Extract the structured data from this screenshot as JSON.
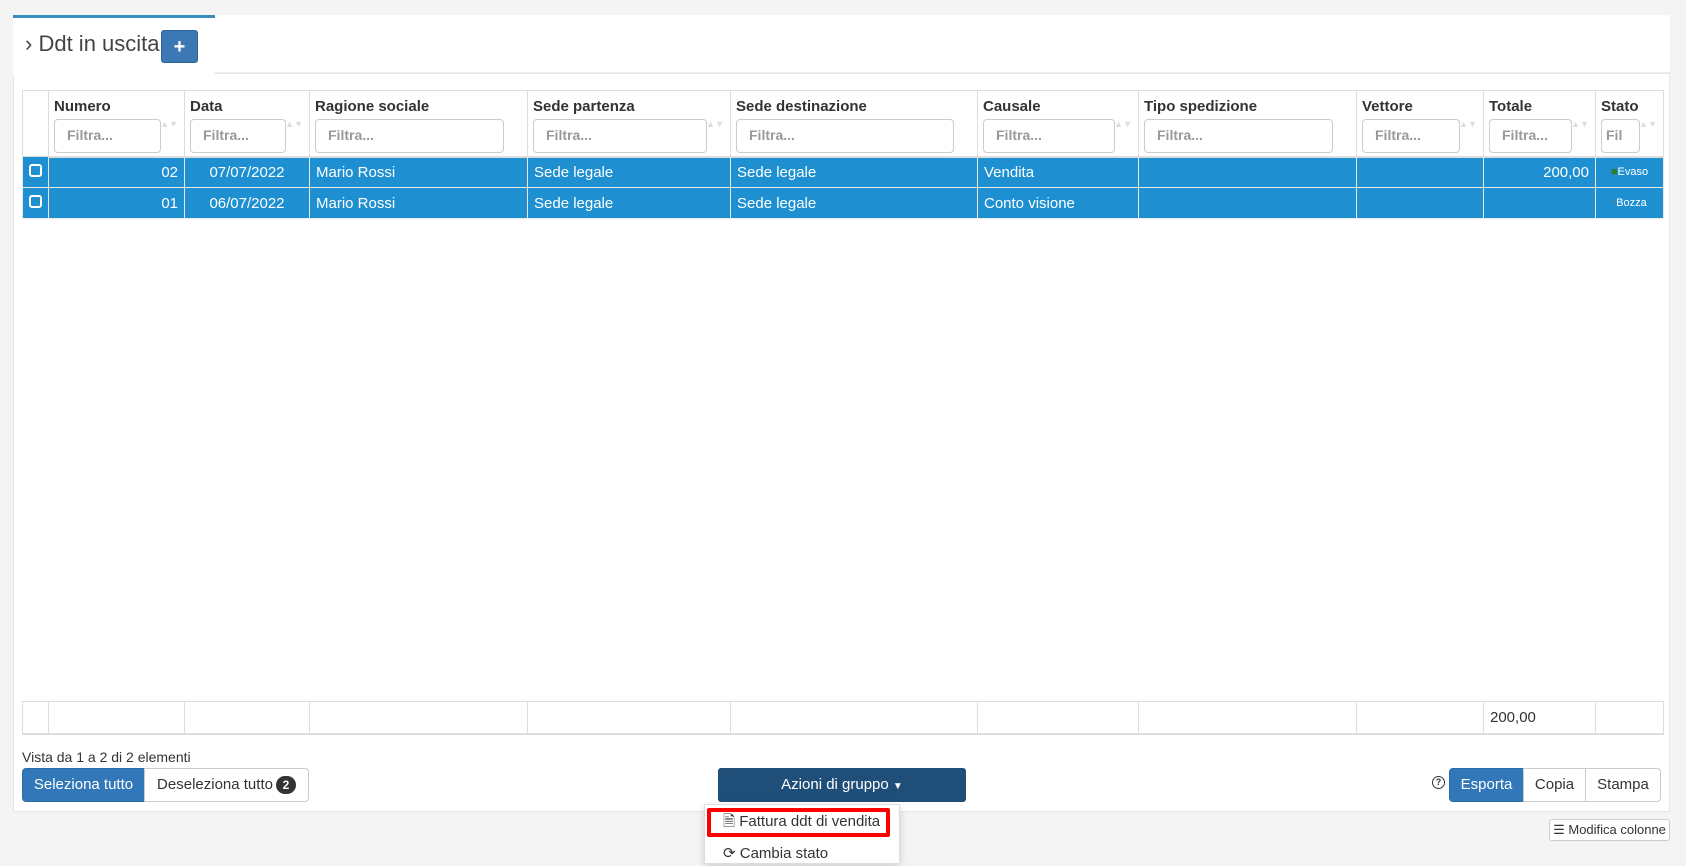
{
  "header": {
    "title": "Ddt in uscita",
    "add_label": "+"
  },
  "columns": [
    "Numero",
    "Data",
    "Ragione sociale",
    "Sede partenza",
    "Sede destinazione",
    "Causale",
    "Tipo spedizione",
    "Vettore",
    "Totale",
    "Stato"
  ],
  "filter_placeholder": "Filtra...",
  "filter_placeholder_short": "Fil",
  "rows": [
    {
      "numero": "02",
      "data": "07/07/2022",
      "ragione_sociale": "Mario Rossi",
      "sede_partenza": "Sede legale",
      "sede_destinazione": "Sede legale",
      "causale": "Vendita",
      "tipo_spedizione": "",
      "vettore": "",
      "totale": "200,00",
      "stato": "Evaso",
      "stato_icon": "truck-icon",
      "stato_color": "#2e7d32"
    },
    {
      "numero": "01",
      "data": "06/07/2022",
      "ragione_sociale": "Mario Rossi",
      "sede_partenza": "Sede legale",
      "sede_destinazione": "Sede legale",
      "causale": "Conto visione",
      "tipo_spedizione": "",
      "vettore": "",
      "totale": "",
      "stato": "Bozza",
      "stato_icon": "file-icon",
      "stato_color": "#777777"
    }
  ],
  "footer": {
    "totale": "200,00"
  },
  "info": "Vista da 1 a 2 di 2 elementi",
  "buttons": {
    "select_all": "Seleziona tutto",
    "deselect_all": "Deseleziona tutto",
    "selected_count": "2",
    "group_actions": "Azioni di gruppo",
    "export": "Esporta",
    "copy": "Copia",
    "print": "Stampa",
    "edit_columns": "Modifica colonne"
  },
  "group_menu": [
    "Fattura ddt di vendita",
    "Cambia stato"
  ],
  "colors": {
    "accent": "#3c8dbc",
    "selected_row": "#1e90d2",
    "group_button": "#1f4e79",
    "highlight": "#ff0000"
  }
}
